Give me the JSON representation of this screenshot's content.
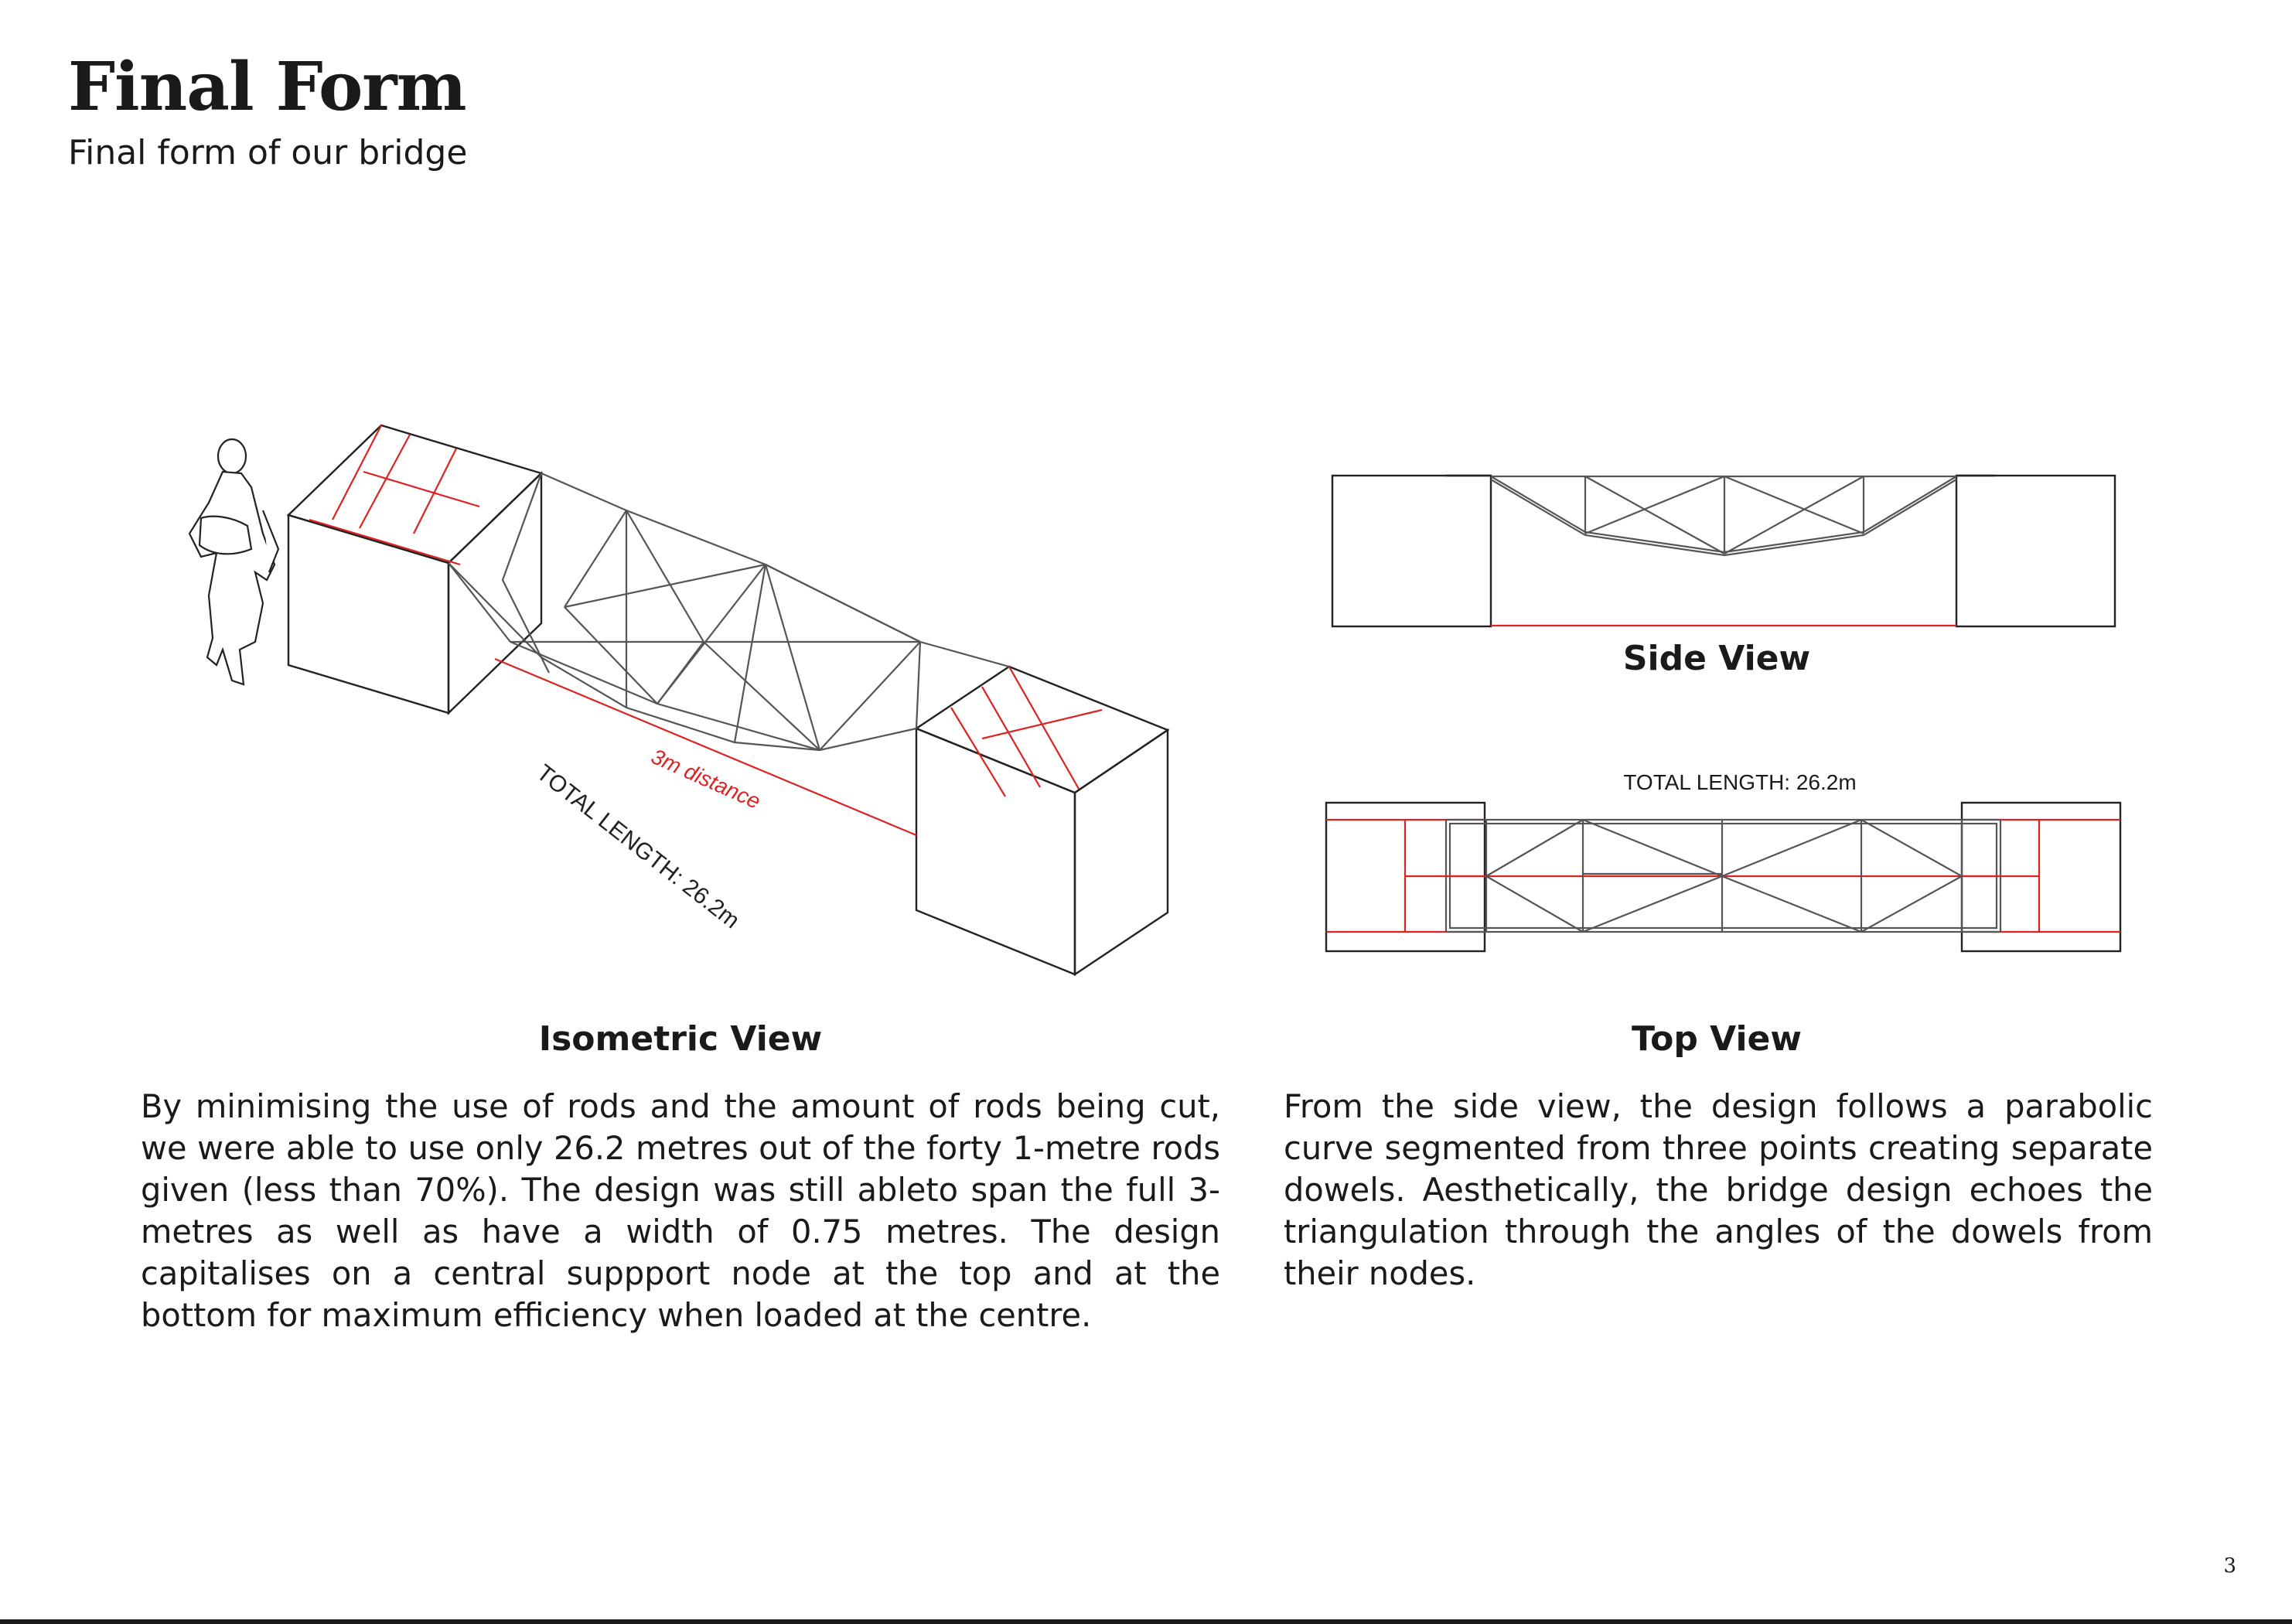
{
  "header": {
    "title": "Final Form",
    "subtitle": "Final form of our bridge"
  },
  "isometric": {
    "caption": "Isometric View",
    "distance_label": "3m distance",
    "length_label": "TOTAL LENGTH: 26.2m"
  },
  "side_view": {
    "caption": "Side View"
  },
  "top_view": {
    "caption": "Top View",
    "length_label": "TOTAL LENGTH: 26.2m"
  },
  "body": {
    "left_paragraph": "By minimising the use of rods and the amount of rods being cut, we were able to use only 26.2 metres out of the forty 1-metre rods given (less than 70%). The design was still ableto span the full 3-metres as well as have a width of 0.75 metres. The design capitalises on a central suppport node at the top and at the bottom for maximum efficiency when loaded at the centre.",
    "right_paragraph": "From the side view, the design follows a parabolic curve segmented from three points creating separate dowels. Aesthetically, the bridge design echoes the triangulation through the angles of the dowels from their nodes."
  },
  "page_number": "3",
  "colors": {
    "annotation_red": "#d22222",
    "line_dark": "#222222"
  }
}
